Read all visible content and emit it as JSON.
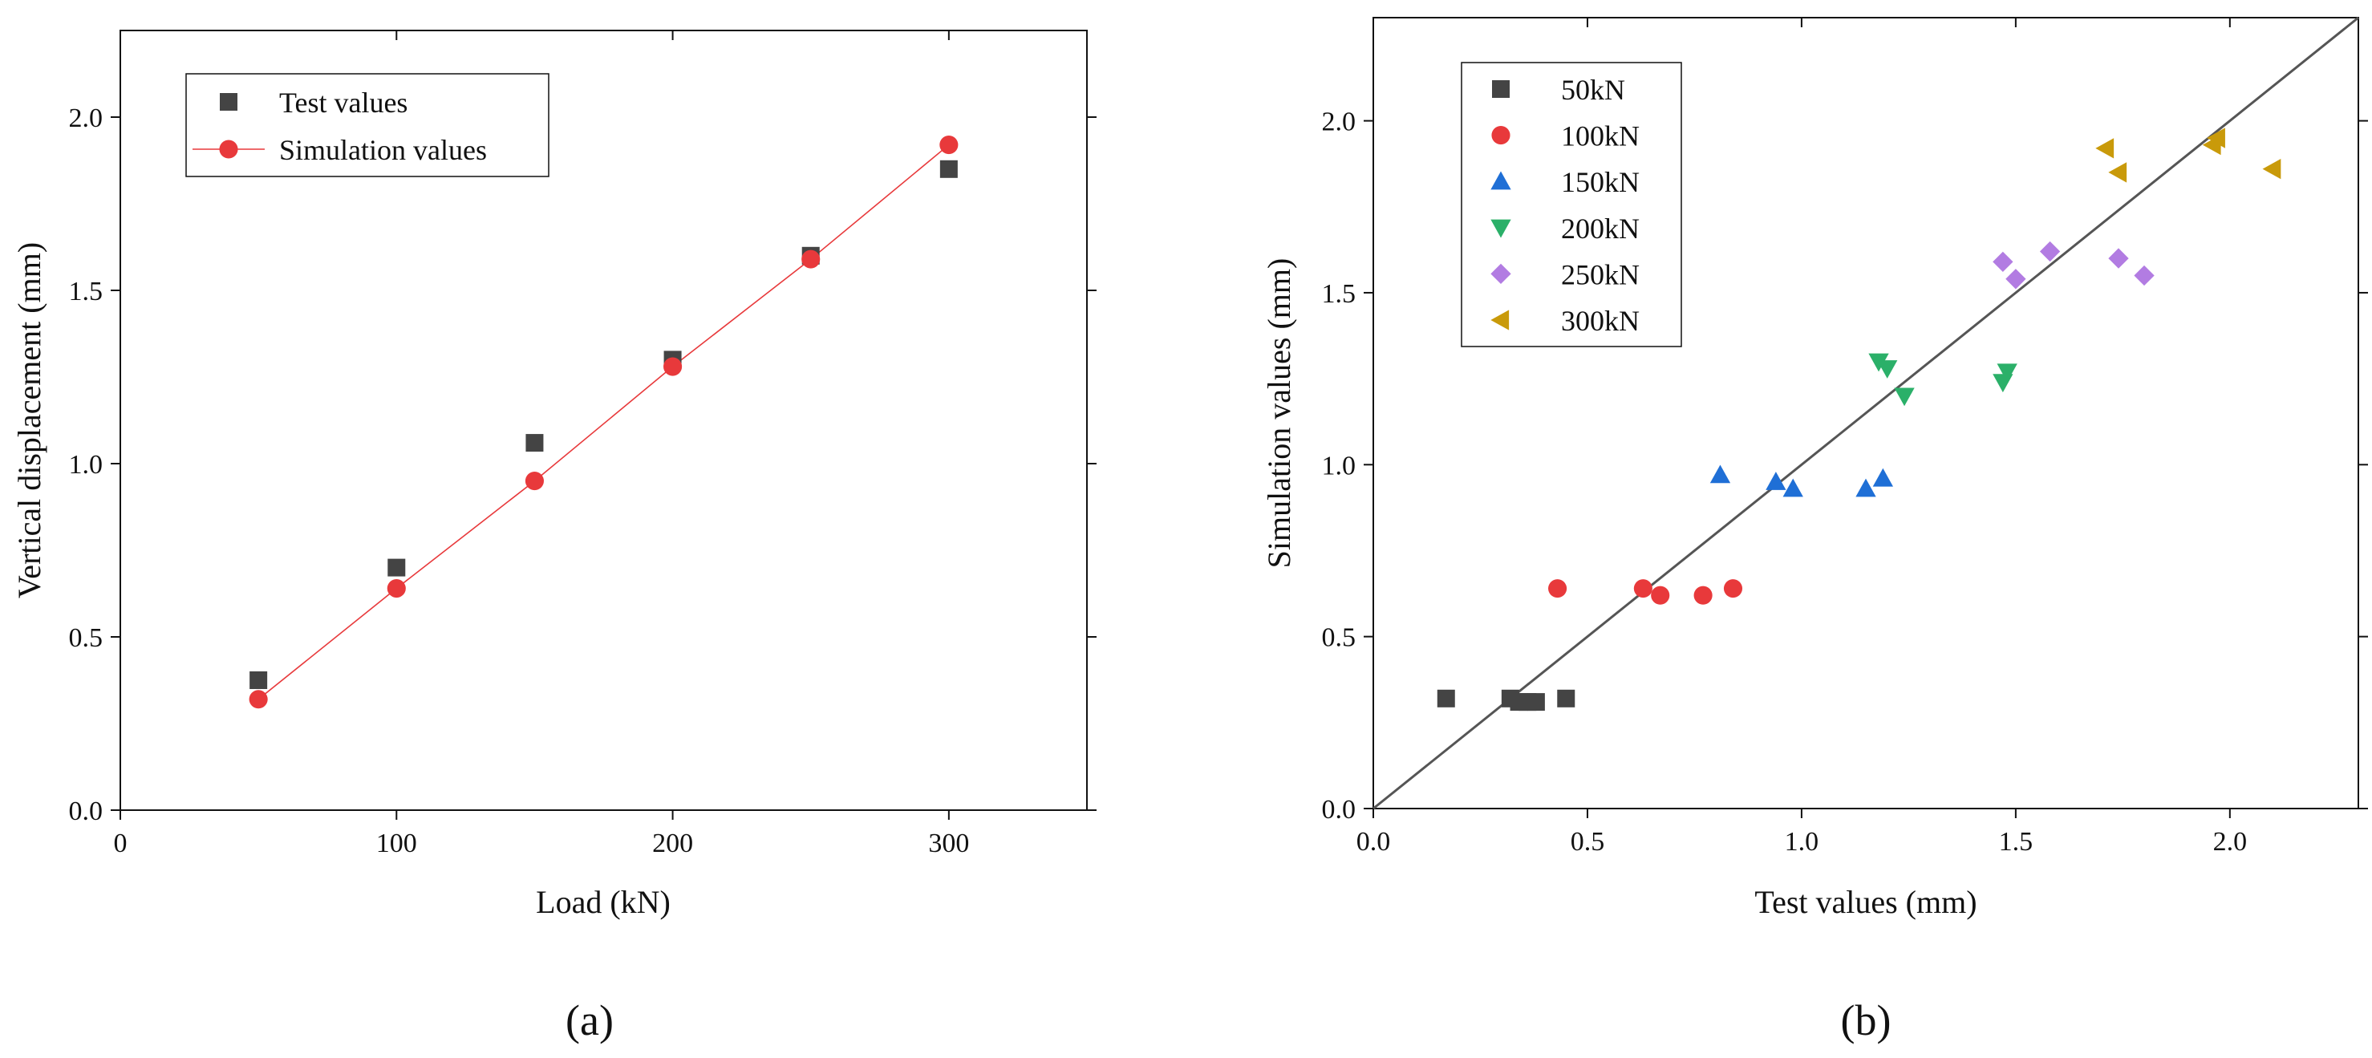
{
  "colors": {
    "test": "#444444",
    "simulation": "#e8393b",
    "simulation_line": "#e8393b",
    "s50": "#444444",
    "s100": "#e8393b",
    "s150": "#1f6fd6",
    "s200": "#2bb069",
    "s250": "#b27ce2",
    "s300": "#c99a0a",
    "fit": "#555555"
  },
  "chart_data": [
    {
      "type": "scatter",
      "panel_label": "(a)",
      "xlabel": "Load (kN)",
      "ylabel": "Vertical displacement (mm)",
      "xlim": [
        0,
        350
      ],
      "ylim": [
        0,
        2.25
      ],
      "xticks": [
        0,
        100,
        200,
        300
      ],
      "xtick_labels": [
        "0",
        "100",
        "200",
        "300"
      ],
      "yticks": [
        0,
        0.5,
        1.0,
        1.5,
        2.0
      ],
      "ytick_labels": [
        "0.0",
        "0.5",
        "1.0",
        "1.5",
        "2.0"
      ],
      "grid": false,
      "legend_position": "top-left",
      "series": [
        {
          "name": "Test values",
          "marker": "square",
          "line": false,
          "x": [
            50,
            100,
            150,
            200,
            250,
            300
          ],
          "values": [
            0.375,
            0.7,
            1.06,
            1.3,
            1.6,
            1.85
          ]
        },
        {
          "name": "Simulation values",
          "marker": "circle",
          "line": true,
          "x": [
            50,
            100,
            150,
            200,
            250,
            300
          ],
          "values": [
            0.32,
            0.64,
            0.95,
            1.28,
            1.59,
            1.92
          ]
        }
      ]
    },
    {
      "type": "scatter",
      "panel_label": "(b)",
      "xlabel": "Test values (mm)",
      "ylabel": "Simulation values (mm)",
      "xlim": [
        0,
        2.3
      ],
      "ylim": [
        0,
        2.3
      ],
      "xticks": [
        0,
        0.5,
        1.0,
        1.5,
        2.0
      ],
      "xtick_labels": [
        "0.0",
        "0.5",
        "1.0",
        "1.5",
        "2.0"
      ],
      "yticks": [
        0,
        0.5,
        1.0,
        1.5,
        2.0
      ],
      "ytick_labels": [
        "0.0",
        "0.5",
        "1.0",
        "1.5",
        "2.0"
      ],
      "grid": false,
      "legend_position": "top-left",
      "reference_line": {
        "x": [
          0,
          2.3
        ],
        "y": [
          0,
          2.3
        ]
      },
      "series": [
        {
          "name": "50kN",
          "marker": "square",
          "x": [
            0.17,
            0.32,
            0.34,
            0.36,
            0.38,
            0.45
          ],
          "values": [
            0.32,
            0.32,
            0.31,
            0.31,
            0.31,
            0.32
          ]
        },
        {
          "name": "100kN",
          "marker": "circle",
          "x": [
            0.43,
            0.63,
            0.67,
            0.77,
            0.84
          ],
          "values": [
            0.64,
            0.64,
            0.62,
            0.62,
            0.64
          ]
        },
        {
          "name": "150kN",
          "marker": "triangle-up",
          "x": [
            0.81,
            0.94,
            0.98,
            1.15,
            1.19
          ],
          "values": [
            0.97,
            0.95,
            0.93,
            0.93,
            0.96
          ]
        },
        {
          "name": "200kN",
          "marker": "triangle-down",
          "x": [
            1.18,
            1.2,
            1.24,
            1.47,
            1.48
          ],
          "values": [
            1.3,
            1.28,
            1.2,
            1.24,
            1.27
          ]
        },
        {
          "name": "250kN",
          "marker": "diamond",
          "x": [
            1.47,
            1.5,
            1.58,
            1.74,
            1.8
          ],
          "values": [
            1.59,
            1.54,
            1.62,
            1.6,
            1.55
          ]
        },
        {
          "name": "300kN",
          "marker": "triangle-left",
          "x": [
            1.71,
            1.74,
            1.96,
            1.97,
            2.1
          ],
          "values": [
            1.92,
            1.85,
            1.93,
            1.95,
            1.86
          ]
        }
      ]
    }
  ]
}
